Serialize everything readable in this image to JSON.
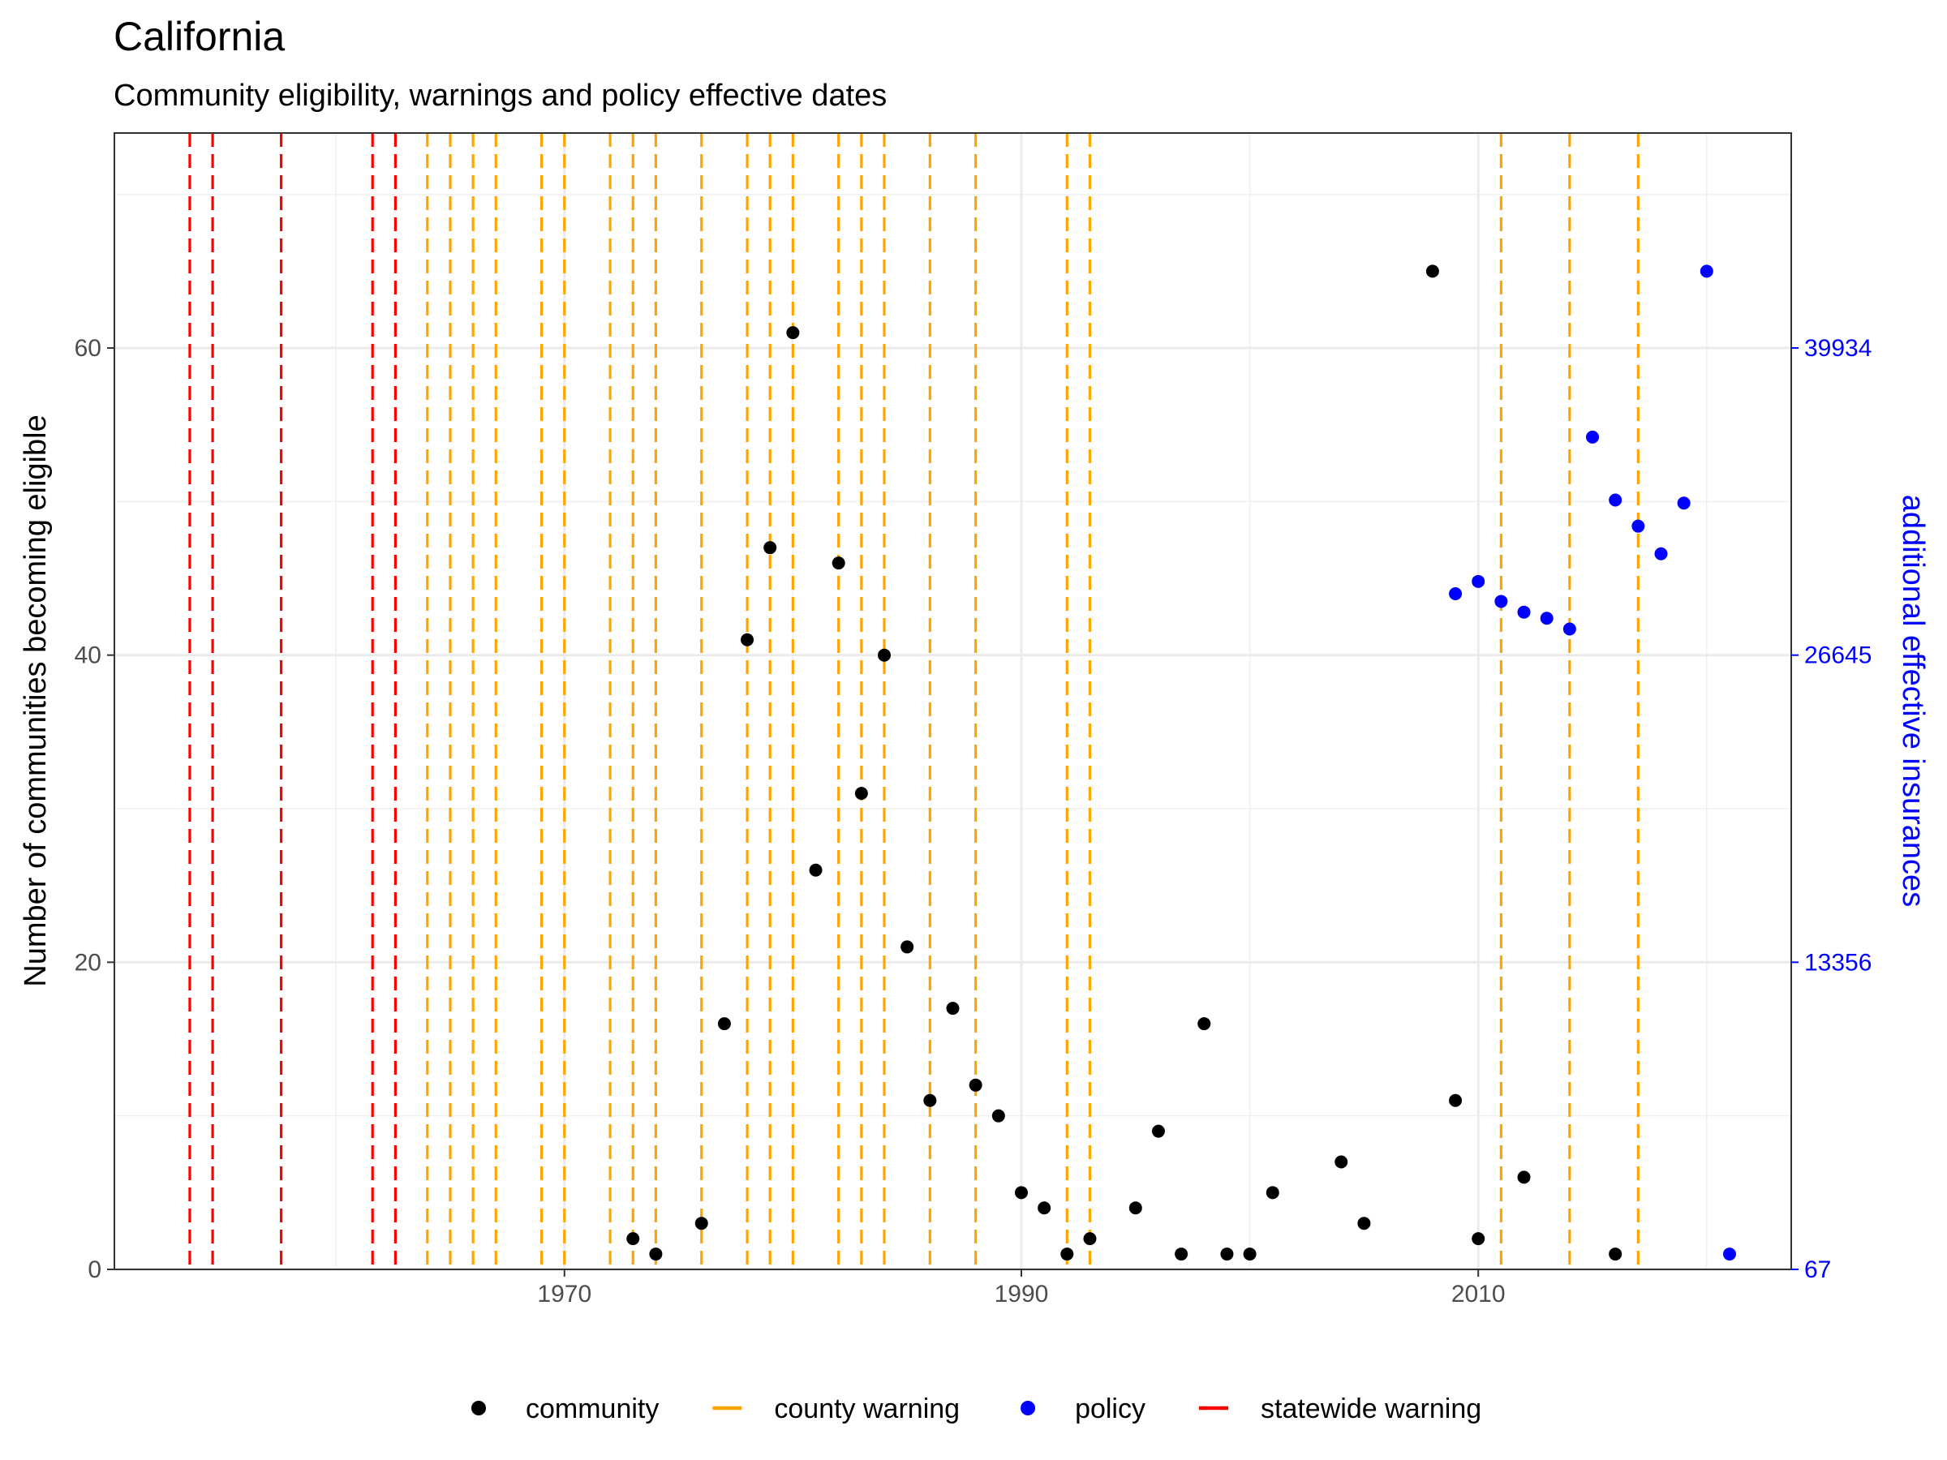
{
  "chart_data": {
    "type": "scatter",
    "title": "California",
    "subtitle": "Community eligibility, warnings and policy effective dates",
    "ylabel": "Number of communities becoming eligible",
    "y2label": "additional effective insurances",
    "xlim": [
      1950.3,
      2023.7
    ],
    "ylim": [
      0,
      74
    ],
    "x_ticks": [
      1970,
      1990,
      2010
    ],
    "x_minor": [
      1960,
      1980,
      2000,
      2020
    ],
    "y_ticks": [
      0,
      20,
      40,
      60
    ],
    "y_minor": [
      10,
      30,
      50,
      70
    ],
    "y2_ticks": [
      {
        "label": "67",
        "y": 0
      },
      {
        "label": "13356",
        "y": 20
      },
      {
        "label": "26645",
        "y": 40
      },
      {
        "label": "39934",
        "y": 60
      }
    ],
    "colors": {
      "community": "#000000",
      "county_warning": "#ffa500",
      "policy": "#0000ff",
      "statewide_warning": "#ff0000",
      "secondary_axis": "#0000ff"
    },
    "legend": {
      "position": "bottom",
      "items": [
        {
          "label": "community",
          "kind": "point",
          "color": "#000000"
        },
        {
          "label": "county warning",
          "kind": "line",
          "color": "#ffa500"
        },
        {
          "label": "policy",
          "kind": "point",
          "color": "#0000ff"
        },
        {
          "label": "statewide warning",
          "kind": "line",
          "color": "#ff0000"
        }
      ]
    },
    "series": [
      {
        "name": "community",
        "kind": "points",
        "color": "#000000",
        "points": [
          {
            "x": 1973,
            "y": 2
          },
          {
            "x": 1974,
            "y": 1
          },
          {
            "x": 1976,
            "y": 3
          },
          {
            "x": 1977,
            "y": 16
          },
          {
            "x": 1978,
            "y": 41
          },
          {
            "x": 1979,
            "y": 47
          },
          {
            "x": 1980,
            "y": 61
          },
          {
            "x": 1981,
            "y": 26
          },
          {
            "x": 1982,
            "y": 46
          },
          {
            "x": 1983,
            "y": 31
          },
          {
            "x": 1984,
            "y": 40
          },
          {
            "x": 1985,
            "y": 21
          },
          {
            "x": 1986,
            "y": 11
          },
          {
            "x": 1987,
            "y": 17
          },
          {
            "x": 1988,
            "y": 12
          },
          {
            "x": 1989,
            "y": 10
          },
          {
            "x": 1990,
            "y": 5
          },
          {
            "x": 1991,
            "y": 4
          },
          {
            "x": 1992,
            "y": 1
          },
          {
            "x": 1993,
            "y": 2
          },
          {
            "x": 1995,
            "y": 4
          },
          {
            "x": 1996,
            "y": 9
          },
          {
            "x": 1997,
            "y": 1
          },
          {
            "x": 1998,
            "y": 16
          },
          {
            "x": 1999,
            "y": 1
          },
          {
            "x": 2000,
            "y": 1
          },
          {
            "x": 2001,
            "y": 5
          },
          {
            "x": 2004,
            "y": 7
          },
          {
            "x": 2005,
            "y": 3
          },
          {
            "x": 2008,
            "y": 65
          },
          {
            "x": 2009,
            "y": 11
          },
          {
            "x": 2010,
            "y": 2
          },
          {
            "x": 2012,
            "y": 6
          },
          {
            "x": 2016,
            "y": 1
          }
        ]
      },
      {
        "name": "policy",
        "kind": "points",
        "color": "#0000ff",
        "points": [
          {
            "x": 2009,
            "y": 44
          },
          {
            "x": 2010,
            "y": 44.8
          },
          {
            "x": 2011,
            "y": 43.5
          },
          {
            "x": 2012,
            "y": 42.8
          },
          {
            "x": 2013,
            "y": 42.4
          },
          {
            "x": 2014,
            "y": 41.7
          },
          {
            "x": 2015,
            "y": 54.2
          },
          {
            "x": 2016,
            "y": 50.1
          },
          {
            "x": 2017,
            "y": 48.4
          },
          {
            "x": 2018,
            "y": 46.6
          },
          {
            "x": 2019,
            "y": 49.9
          },
          {
            "x": 2020,
            "y": 65
          },
          {
            "x": 2021,
            "y": 1
          }
        ]
      },
      {
        "name": "county warning",
        "kind": "vlines",
        "color": "#ffa500",
        "x": [
          1964,
          1965,
          1966,
          1967,
          1969,
          1970,
          1972,
          1973,
          1974,
          1976,
          1978,
          1979,
          1980,
          1982,
          1983,
          1984,
          1986,
          1988,
          1992,
          1993,
          2011,
          2014,
          2017
        ]
      },
      {
        "name": "statewide warning",
        "kind": "vlines",
        "color": "#ff0000",
        "x": [
          1953.6,
          1954.6,
          1957.6,
          1961.6,
          1962.6
        ]
      }
    ]
  }
}
